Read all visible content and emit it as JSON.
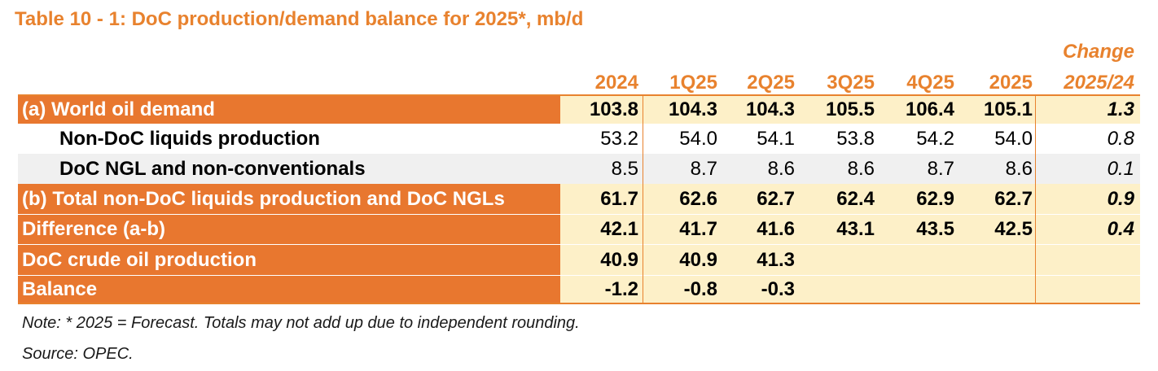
{
  "title": "Table 10 - 1: DoC production/demand balance for 2025*, mb/d",
  "header": {
    "change_line1": "Change",
    "columns": [
      "2024",
      "1Q25",
      "2Q25",
      "3Q25",
      "4Q25",
      "2025",
      "2025/24"
    ]
  },
  "rows": [
    {
      "label": "(a) World oil demand",
      "values": [
        "103.8",
        "104.3",
        "104.3",
        "105.5",
        "106.4",
        "105.1"
      ],
      "change": "1.3"
    },
    {
      "label": "Non-DoC liquids production",
      "values": [
        "53.2",
        "54.0",
        "54.1",
        "53.8",
        "54.2",
        "54.0"
      ],
      "change": "0.8"
    },
    {
      "label": "DoC NGL and non-conventionals",
      "values": [
        "8.5",
        "8.7",
        "8.6",
        "8.6",
        "8.7",
        "8.6"
      ],
      "change": "0.1"
    },
    {
      "label": "(b) Total non-DoC liquids production and DoC NGLs",
      "values": [
        "61.7",
        "62.6",
        "62.7",
        "62.4",
        "62.9",
        "62.7"
      ],
      "change": "0.9"
    },
    {
      "label": "Difference (a-b)",
      "values": [
        "42.1",
        "41.7",
        "41.6",
        "43.1",
        "43.5",
        "42.5"
      ],
      "change": "0.4"
    },
    {
      "label": "DoC crude oil production",
      "values": [
        "40.9",
        "40.9",
        "41.3",
        "",
        "",
        ""
      ],
      "change": ""
    },
    {
      "label": "Balance",
      "values": [
        "-1.2",
        "-0.8",
        "-0.3",
        "",
        "",
        ""
      ],
      "change": ""
    }
  ],
  "notes": {
    "note": "Note: * 2025 = Forecast. Totals may not add up due to independent rounding.",
    "source": "Source: OPEC."
  }
}
